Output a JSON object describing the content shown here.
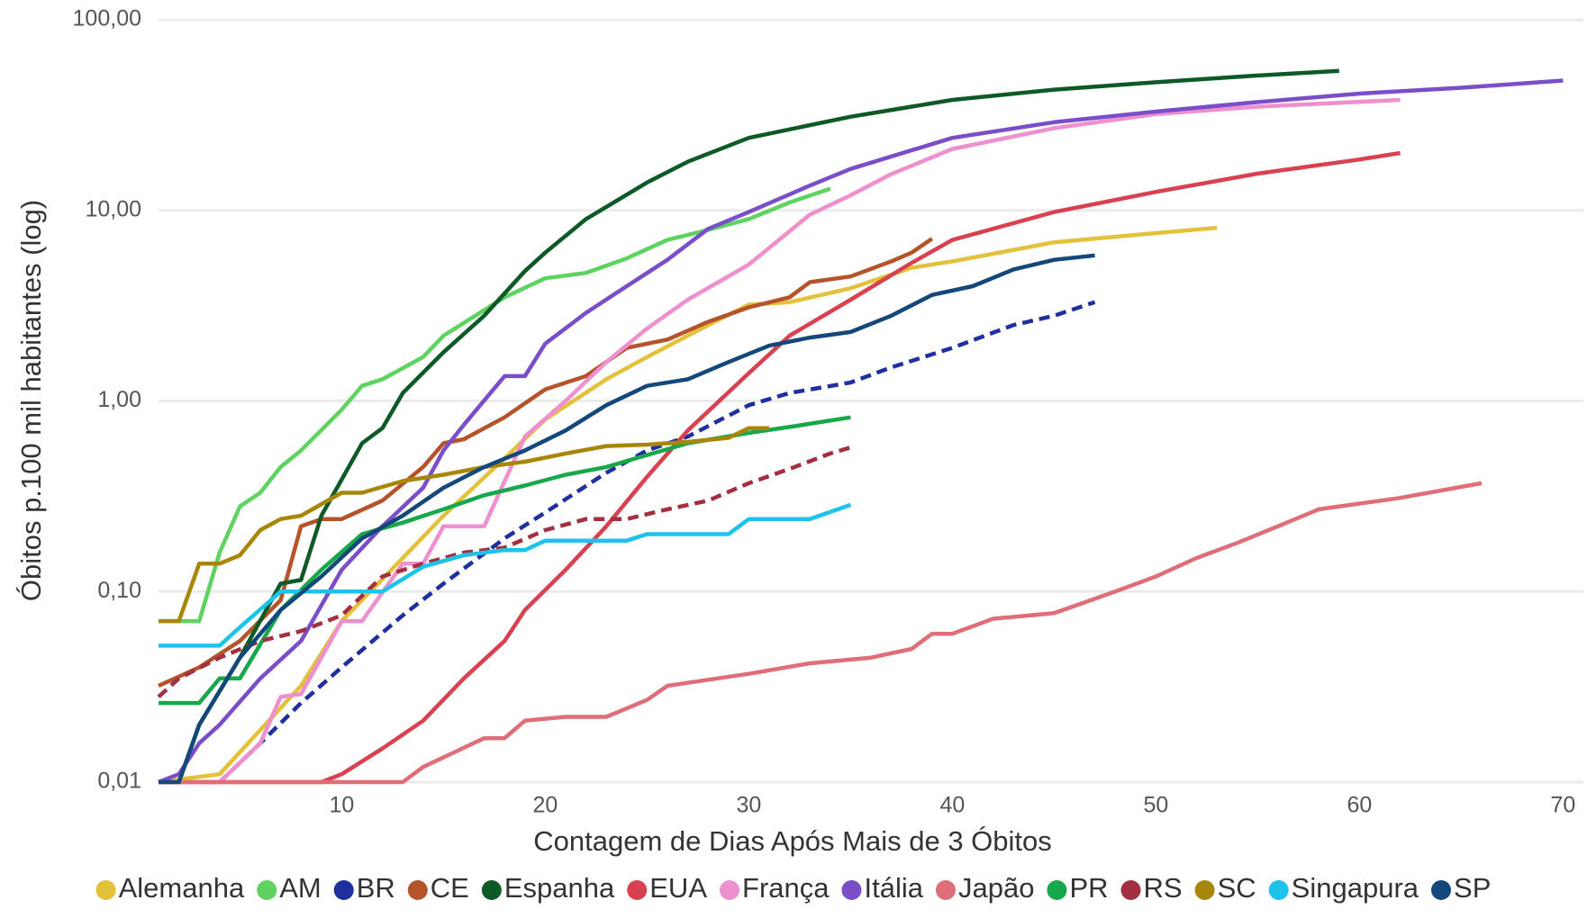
{
  "chart_data": {
    "type": "line",
    "x_label": "Contagem de Dias Após Mais de 3 Óbitos",
    "y_label": "Óbitos p.100 mil habitantes (log)",
    "log_y": true,
    "grid": true,
    "legend": "bottom",
    "xlim": [
      1,
      71
    ],
    "xticks": [
      10,
      20,
      30,
      40,
      50,
      60,
      70
    ],
    "ylim": [
      0.01,
      100
    ],
    "yticks": [
      {
        "value": 0.01,
        "label": "0,01"
      },
      {
        "value": 0.1,
        "label": "0,10"
      },
      {
        "value": 1,
        "label": "1,00"
      },
      {
        "value": 10,
        "label": "10,00"
      },
      {
        "value": 100,
        "label": "100,00"
      }
    ],
    "series": [
      {
        "name": "Alemanha",
        "color": "#e3c13b",
        "dashed": false,
        "x": [
          1,
          4,
          8,
          10,
          13,
          15,
          18,
          20,
          23,
          25,
          28,
          30,
          32,
          35,
          38,
          40,
          45,
          50,
          53
        ],
        "values": [
          0.01,
          0.011,
          0.032,
          0.07,
          0.15,
          0.25,
          0.5,
          0.8,
          1.3,
          1.7,
          2.5,
          3.2,
          3.3,
          3.9,
          5.0,
          5.4,
          6.8,
          7.6,
          8.1
        ]
      },
      {
        "name": "AM",
        "color": "#5fd35f",
        "dashed": false,
        "x": [
          1,
          3,
          4,
          5,
          6,
          7,
          8,
          10,
          11,
          12,
          14,
          15,
          18,
          20,
          22,
          24,
          26,
          28,
          30,
          32,
          34
        ],
        "values": [
          0.07,
          0.07,
          0.16,
          0.28,
          0.33,
          0.45,
          0.55,
          0.9,
          1.2,
          1.3,
          1.7,
          2.2,
          3.5,
          4.4,
          4.7,
          5.6,
          7.0,
          7.9,
          9.0,
          11,
          13
        ]
      },
      {
        "name": "BR",
        "color": "#1f2f9e",
        "dashed": true,
        "x": [
          4,
          6,
          8,
          10,
          13,
          15,
          18,
          20,
          23,
          25,
          27,
          30,
          32,
          35,
          37,
          40,
          43,
          45,
          47
        ],
        "values": [
          0.01,
          0.016,
          0.026,
          0.04,
          0.075,
          0.11,
          0.19,
          0.26,
          0.42,
          0.55,
          0.65,
          0.95,
          1.1,
          1.25,
          1.5,
          1.9,
          2.5,
          2.8,
          3.3
        ]
      },
      {
        "name": "CE",
        "color": "#b5542a",
        "dashed": false,
        "x": [
          1,
          3,
          5,
          7,
          8,
          9,
          10,
          12,
          14,
          15,
          16,
          18,
          20,
          22,
          24,
          26,
          28,
          30,
          32,
          33,
          35,
          37,
          38,
          39
        ],
        "values": [
          0.032,
          0.04,
          0.055,
          0.09,
          0.22,
          0.24,
          0.24,
          0.3,
          0.45,
          0.6,
          0.63,
          0.82,
          1.15,
          1.35,
          1.9,
          2.1,
          2.6,
          3.1,
          3.5,
          4.2,
          4.5,
          5.4,
          6.0,
          7.1
        ]
      },
      {
        "name": "Espanha",
        "color": "#0d5a26",
        "dashed": false,
        "x": [
          1,
          2,
          3,
          5,
          7,
          8,
          9,
          11,
          12,
          13,
          15,
          17,
          19,
          20,
          22,
          25,
          27,
          30,
          35,
          40,
          45,
          50,
          55,
          59
        ],
        "values": [
          0.01,
          0.01,
          0.02,
          0.045,
          0.11,
          0.115,
          0.25,
          0.6,
          0.72,
          1.1,
          1.8,
          2.8,
          4.8,
          6,
          9,
          14,
          18,
          24,
          31,
          38,
          43,
          47,
          51,
          54
        ]
      },
      {
        "name": "EUA",
        "color": "#d94050",
        "dashed": false,
        "x": [
          1,
          9,
          10,
          12,
          14,
          16,
          18,
          19,
          21,
          23,
          25,
          27,
          30,
          32,
          35,
          38,
          40,
          45,
          50,
          55,
          60,
          62
        ],
        "values": [
          0.01,
          0.01,
          0.011,
          0.015,
          0.021,
          0.035,
          0.055,
          0.08,
          0.13,
          0.22,
          0.4,
          0.7,
          1.4,
          2.2,
          3.4,
          5.3,
          7.0,
          9.8,
          12.5,
          15.6,
          18.5,
          20
        ]
      },
      {
        "name": "França",
        "color": "#ee8fce",
        "dashed": false,
        "x": [
          1,
          4,
          6,
          7,
          8,
          10,
          11,
          13,
          14,
          15,
          17,
          19,
          21,
          23,
          25,
          27,
          30,
          33,
          35,
          37,
          40,
          45,
          50,
          55,
          62
        ],
        "values": [
          0.01,
          0.01,
          0.016,
          0.028,
          0.029,
          0.07,
          0.07,
          0.14,
          0.14,
          0.22,
          0.22,
          0.65,
          1.0,
          1.6,
          2.4,
          3.4,
          5.2,
          9.5,
          12,
          15.5,
          21,
          27,
          32,
          35,
          38
        ]
      },
      {
        "name": "Itália",
        "color": "#7a4ec9",
        "dashed": false,
        "x": [
          1,
          2,
          3,
          4,
          6,
          8,
          10,
          12,
          14,
          15,
          16,
          18,
          19,
          20,
          22,
          24,
          26,
          28,
          30,
          33,
          35,
          40,
          45,
          50,
          55,
          60,
          65,
          70
        ],
        "values": [
          0.01,
          0.011,
          0.016,
          0.02,
          0.035,
          0.055,
          0.13,
          0.22,
          0.35,
          0.55,
          0.75,
          1.35,
          1.35,
          2.0,
          2.9,
          4.0,
          5.5,
          8,
          9.8,
          13.5,
          16.5,
          24,
          29,
          33,
          37,
          41,
          44,
          48
        ]
      },
      {
        "name": "Japão",
        "color": "#df6e78",
        "dashed": false,
        "x": [
          1,
          13,
          14,
          17,
          18,
          19,
          21,
          23,
          25,
          26,
          30,
          33,
          36,
          38,
          39,
          40,
          42,
          45,
          48,
          50,
          52,
          54,
          56,
          58,
          62,
          66
        ],
        "values": [
          0.01,
          0.01,
          0.012,
          0.017,
          0.017,
          0.021,
          0.022,
          0.022,
          0.027,
          0.032,
          0.037,
          0.042,
          0.045,
          0.05,
          0.06,
          0.06,
          0.072,
          0.077,
          0.1,
          0.12,
          0.15,
          0.18,
          0.22,
          0.27,
          0.31,
          0.37
        ]
      },
      {
        "name": "PR",
        "color": "#16a84a",
        "dashed": false,
        "x": [
          1,
          3,
          4,
          5,
          7,
          9,
          11,
          13,
          15,
          17,
          19,
          21,
          23,
          25,
          27,
          30,
          32,
          35
        ],
        "values": [
          0.026,
          0.026,
          0.035,
          0.035,
          0.08,
          0.13,
          0.2,
          0.23,
          0.27,
          0.32,
          0.36,
          0.41,
          0.45,
          0.52,
          0.6,
          0.68,
          0.73,
          0.82
        ]
      },
      {
        "name": "RS",
        "color": "#a33040",
        "dashed": true,
        "x": [
          1,
          2,
          4,
          6,
          8,
          10,
          12,
          14,
          16,
          18,
          20,
          22,
          24,
          26,
          28,
          30,
          32,
          34,
          35
        ],
        "values": [
          0.028,
          0.035,
          0.045,
          0.055,
          0.062,
          0.075,
          0.12,
          0.14,
          0.16,
          0.17,
          0.21,
          0.24,
          0.24,
          0.27,
          0.3,
          0.37,
          0.44,
          0.53,
          0.57
        ]
      },
      {
        "name": "SC",
        "color": "#a8860a",
        "dashed": false,
        "x": [
          1,
          2,
          3,
          4,
          5,
          6,
          7,
          8,
          10,
          11,
          13,
          15,
          17,
          19,
          21,
          23,
          25,
          27,
          29,
          30,
          31
        ],
        "values": [
          0.07,
          0.07,
          0.14,
          0.14,
          0.155,
          0.21,
          0.24,
          0.25,
          0.33,
          0.33,
          0.38,
          0.41,
          0.45,
          0.48,
          0.53,
          0.58,
          0.59,
          0.61,
          0.64,
          0.72,
          0.72
        ]
      },
      {
        "name": "Singapura",
        "color": "#1ec3ec",
        "dashed": false,
        "x": [
          1,
          4,
          5,
          7,
          9,
          12,
          14,
          16,
          18,
          19,
          20,
          24,
          25,
          29,
          30,
          33,
          35
        ],
        "values": [
          0.052,
          0.052,
          0.065,
          0.1,
          0.1,
          0.1,
          0.135,
          0.155,
          0.165,
          0.165,
          0.185,
          0.185,
          0.2,
          0.2,
          0.24,
          0.24,
          0.285
        ]
      },
      {
        "name": "SP",
        "color": "#14477a",
        "dashed": false,
        "x": [
          1,
          2,
          3,
          5,
          7,
          9,
          11,
          13,
          15,
          17,
          19,
          21,
          23,
          25,
          27,
          29,
          31,
          33,
          35,
          37,
          39,
          41,
          43,
          45,
          47
        ],
        "values": [
          0.01,
          0.01,
          0.02,
          0.045,
          0.08,
          0.12,
          0.19,
          0.25,
          0.35,
          0.45,
          0.55,
          0.7,
          0.95,
          1.2,
          1.3,
          1.6,
          1.95,
          2.15,
          2.3,
          2.8,
          3.6,
          4.0,
          4.9,
          5.5,
          5.8
        ]
      }
    ]
  }
}
